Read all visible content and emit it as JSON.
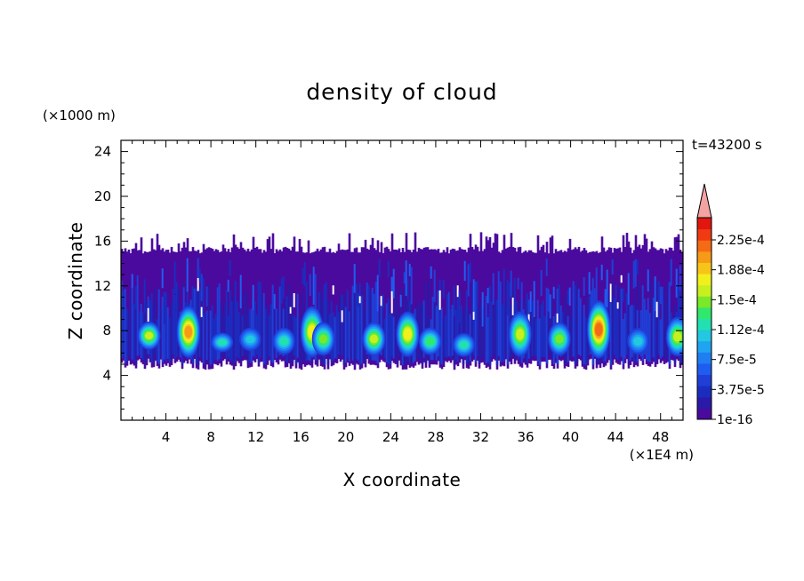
{
  "chart_data": {
    "type": "heatmap",
    "title": "density of cloud",
    "xlabel": "X coordinate",
    "ylabel": "Z coordinate",
    "x_unit": "(×1E4 m)",
    "y_unit": "(×1000 m)",
    "time_label": "t=43200 s",
    "xlim": [
      0,
      50
    ],
    "ylim": [
      0,
      25
    ],
    "x_ticks": [
      4,
      8,
      12,
      16,
      20,
      24,
      28,
      32,
      36,
      40,
      44,
      48
    ],
    "y_ticks": [
      4,
      8,
      12,
      16,
      20,
      24
    ],
    "colorbar": {
      "labels": [
        "2.25e-4",
        "1.88e-4",
        "1.5e-4",
        "1.12e-4",
        "7.5e-5",
        "3.75e-5",
        "1e-16"
      ],
      "colors": [
        "#4b0a9e",
        "#2a1aa8",
        "#1a2dbf",
        "#1f3fd6",
        "#1e5df0",
        "#1f7ff2",
        "#20a3f0",
        "#22c7e0",
        "#22e0b0",
        "#30e86b",
        "#7be82a",
        "#c8f01f",
        "#f2f01c",
        "#f7c51a",
        "#f79a17",
        "#f56a15",
        "#f03a12",
        "#e0160f"
      ],
      "extend_color": "#f4a3a3",
      "range": [
        0,
        0.00025
      ]
    },
    "field": {
      "description": "cloud density concentrated between z≈4.5 and z≈16 (×1000 m); low values (purple/blue) fill the band, with convective cores of higher density (cyan–yellow–red) between z≈6 and z≈11",
      "band_bottom_z": 4.5,
      "band_top_z": 15.5,
      "cores": [
        {
          "x": 2.5,
          "zmin": 6.5,
          "zmax": 9,
          "peak": 0.00016
        },
        {
          "x": 6,
          "zmin": 6,
          "zmax": 10.5,
          "peak": 0.0002
        },
        {
          "x": 9,
          "zmin": 6.2,
          "zmax": 8,
          "peak": 0.00012
        },
        {
          "x": 11.5,
          "zmin": 6.3,
          "zmax": 8.5,
          "peak": 0.00011
        },
        {
          "x": 14.5,
          "zmin": 6,
          "zmax": 8.5,
          "peak": 0.00012
        },
        {
          "x": 17,
          "zmin": 6,
          "zmax": 10.5,
          "peak": 0.00017
        },
        {
          "x": 18,
          "zmin": 6,
          "zmax": 9,
          "peak": 0.00014
        },
        {
          "x": 22.5,
          "zmin": 6,
          "zmax": 9,
          "peak": 0.00016
        },
        {
          "x": 25.5,
          "zmin": 6,
          "zmax": 10,
          "peak": 0.00017
        },
        {
          "x": 27.5,
          "zmin": 6,
          "zmax": 8.5,
          "peak": 0.00013
        },
        {
          "x": 30.5,
          "zmin": 5.8,
          "zmax": 8,
          "peak": 0.00012
        },
        {
          "x": 35.5,
          "zmin": 6,
          "zmax": 10,
          "peak": 0.00016
        },
        {
          "x": 39,
          "zmin": 6,
          "zmax": 9,
          "peak": 0.00015
        },
        {
          "x": 42.5,
          "zmin": 6,
          "zmax": 11,
          "peak": 0.00022
        },
        {
          "x": 46,
          "zmin": 6,
          "zmax": 8.5,
          "peak": 0.00011
        },
        {
          "x": 49.5,
          "zmin": 6,
          "zmax": 9.5,
          "peak": 0.00016
        }
      ]
    }
  }
}
